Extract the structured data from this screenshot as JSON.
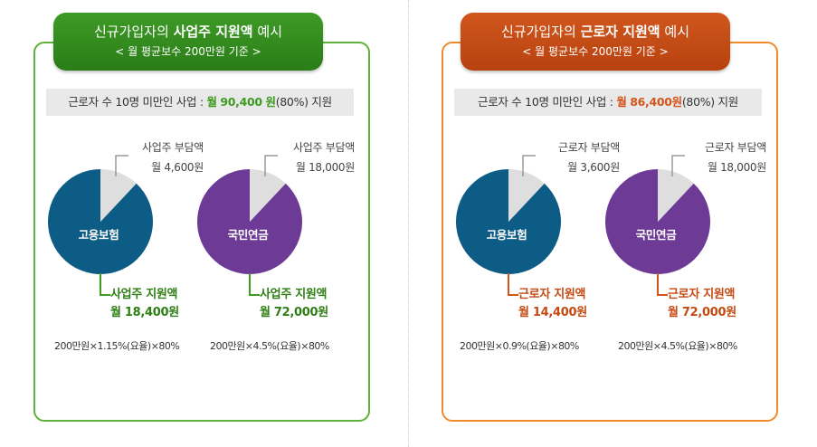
{
  "employer_panel": {
    "title_prefix": "신규가입자의",
    "title_bold": "사업주 지원액",
    "title_suffix": "예시",
    "subtitle": "< 월 평균보수 200만원 기준 >",
    "info_prefix": "근로자 수 10명 미만인 사업 :",
    "info_month": "월",
    "info_amount": "90,400",
    "info_unit": "원",
    "info_suffix": "(80%) 지원",
    "employment": {
      "pie_label": "고용보험",
      "burden_label": "사업주 부담액",
      "burden_value": "월 4,600원",
      "support_label": "사업주 지원액",
      "support_value": "월 18,400원",
      "formula": "200만원×1.15%(요율)×80%",
      "support_fraction": 0.8
    },
    "pension": {
      "pie_label": "국민연금",
      "burden_label": "사업주 부담액",
      "burden_value": "월 18,000원",
      "support_label": "사업주 지원액",
      "support_value": "월 72,000원",
      "formula": "200만원×4.5%(요율)×80%",
      "support_fraction": 0.8
    }
  },
  "worker_panel": {
    "title_prefix": "신규가입자의",
    "title_bold": "근로자 지원액",
    "title_suffix": "예시",
    "subtitle": "< 월 평균보수 200만원 기준 >",
    "info_prefix": "근로자 수 10명 미만인 사업 :",
    "info_month": "월",
    "info_amount": "86,400원",
    "info_suffix": "(80%) 지원",
    "employment": {
      "pie_label": "고용보험",
      "burden_label": "근로자 부담액",
      "burden_value": "월 3,600원",
      "support_label": "근로자 지원액",
      "support_value": "월 14,400원",
      "formula": "200만원×0.9%(요율)×80%",
      "support_fraction": 0.8
    },
    "pension": {
      "pie_label": "국민연금",
      "burden_label": "근로자 부담액",
      "burden_value": "월 18,000원",
      "support_label": "근로자 지원액",
      "support_value": "월 72,000원",
      "formula": "200만원×4.5%(요율)×80%",
      "support_fraction": 0.8
    }
  },
  "colors": {
    "green_border": "#5cb23a",
    "orange_border": "#f08a2b",
    "employment_pie": "#0d5c86",
    "pension_pie": "#6d3a96",
    "burden_slice": "#dedede",
    "green_text": "#2e7e14",
    "orange_text": "#c44a12"
  }
}
